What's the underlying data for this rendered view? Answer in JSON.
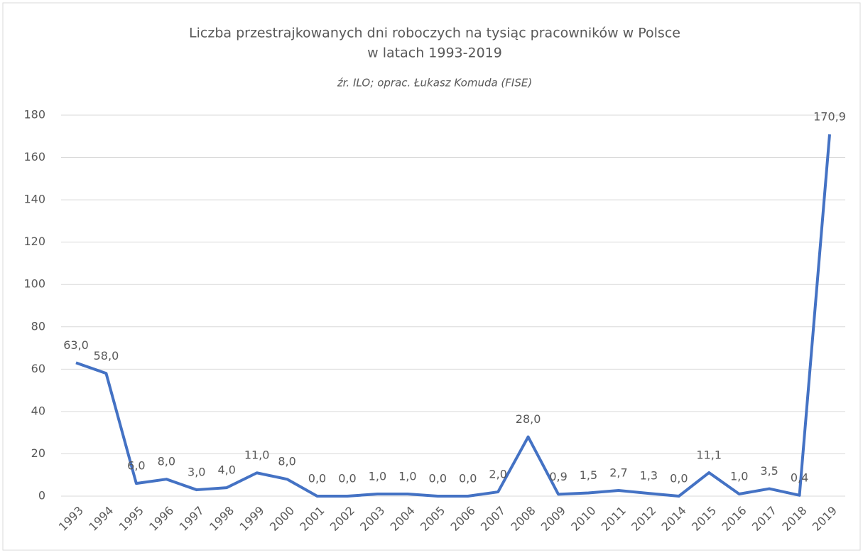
{
  "chart_data": {
    "type": "line",
    "title": [
      "Liczba przestrajkowanych dni roboczych na tysiąc pracowników w Polsce",
      "w latach 1993-2019"
    ],
    "subtitle": "źr. ILO; oprac. Łukasz Komuda (FISE)",
    "categories": [
      "1993",
      "1994",
      "1995",
      "1996",
      "1997",
      "1998",
      "1999",
      "2000",
      "2001",
      "2002",
      "2003",
      "2004",
      "2005",
      "2006",
      "2007",
      "2008",
      "2009",
      "2010",
      "2011",
      "2012",
      "2014",
      "2015",
      "2016",
      "2017",
      "2018",
      "2019"
    ],
    "values": [
      63,
      58,
      6,
      8,
      3,
      4,
      11,
      8,
      0,
      0,
      1,
      1,
      0,
      0,
      2,
      28,
      0.9,
      1.5,
      2.7,
      1.3,
      0,
      11.1,
      1,
      3.5,
      0.4,
      170.9
    ],
    "value_labels": [
      "63,0",
      "58,0",
      "6,0",
      "8,0",
      "3,0",
      "4,0",
      "11,0",
      "8,0",
      "0,0",
      "0,0",
      "1,0",
      "1,0",
      "0,0",
      "0,0",
      "2,0",
      "28,0",
      "0,9",
      "1,5",
      "2,7",
      "1,3",
      "0,0",
      "11,1",
      "1,0",
      "3,5",
      "0,4",
      "170,9"
    ],
    "color": "#4472c4",
    "ylim": [
      0,
      180
    ],
    "yticks": [
      0,
      20,
      40,
      60,
      80,
      100,
      120,
      140,
      160,
      180
    ],
    "grid": true
  }
}
